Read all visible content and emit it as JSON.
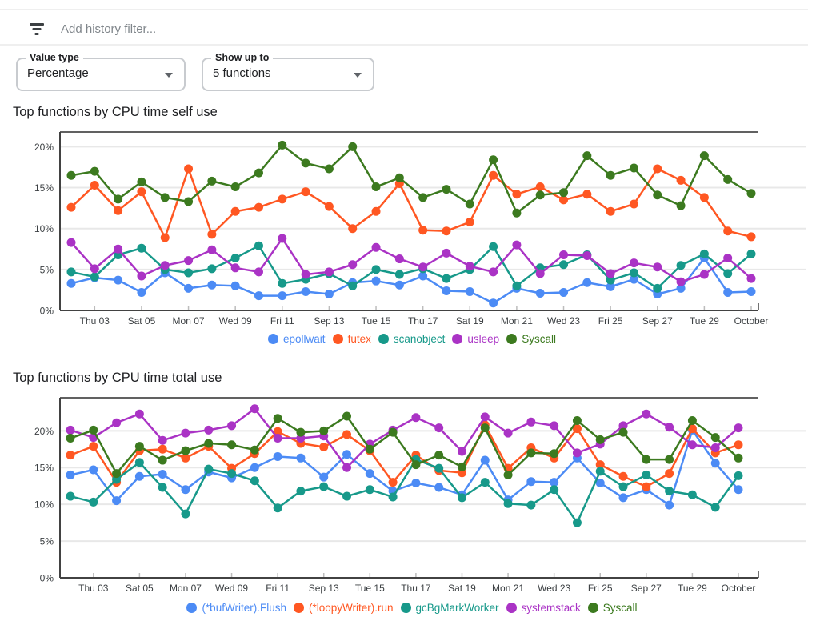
{
  "filter_bar": {
    "placeholder": "Add history filter..."
  },
  "controls": {
    "value_type": {
      "label": "Value type",
      "value": "Percentage"
    },
    "show_up_to": {
      "label": "Show up to",
      "value": "5 functions"
    }
  },
  "colors": {
    "blue": "#4C8BF5",
    "orange": "#FF5722",
    "teal": "#17998A",
    "purple": "#AA33C5",
    "green": "#3C7A1F",
    "axis": "#424242",
    "gridline": "#e8e8e8",
    "tick_label": "#3c4043"
  },
  "chart_data": [
    {
      "type": "line",
      "title": "Top functions by CPU time self use",
      "xlabel": "",
      "ylabel": "",
      "ylim": [
        0,
        21.8
      ],
      "grid": true,
      "legend_position": "bottom",
      "y_ticks": [
        0,
        5,
        10,
        15,
        20
      ],
      "y_tick_labels": [
        "0%",
        "5%",
        "10%",
        "15%",
        "20%"
      ],
      "x_tick_labels": [
        "Thu 03",
        "Sat 05",
        "Mon 07",
        "Wed 09",
        "Fri 11",
        "Sep 13",
        "Tue 15",
        "Thu 17",
        "Sat 19",
        "Mon 21",
        "Wed 23",
        "Fri 25",
        "Sep 27",
        "Tue 29",
        "October"
      ],
      "series": [
        {
          "name": "epollwait",
          "color": "#4C8BF5",
          "values": [
            3.3,
            4.0,
            3.7,
            2.2,
            4.6,
            2.7,
            3.1,
            3.0,
            1.8,
            1.8,
            2.3,
            2.0,
            3.4,
            3.6,
            3.1,
            4.2,
            2.4,
            2.3,
            0.9,
            2.7,
            2.1,
            2.2,
            3.4,
            2.9,
            3.8,
            2.0,
            2.7,
            6.4,
            2.2,
            2.3
          ]
        },
        {
          "name": "futex",
          "color": "#FF5722",
          "values": [
            12.6,
            15.3,
            12.2,
            14.5,
            8.9,
            17.3,
            9.3,
            12.1,
            12.6,
            13.6,
            14.5,
            12.7,
            10.0,
            12.1,
            15.5,
            9.8,
            9.7,
            10.8,
            16.5,
            14.2,
            15.1,
            13.5,
            14.2,
            12.1,
            13.0,
            17.3,
            15.9,
            13.8,
            9.7,
            9.0
          ]
        },
        {
          "name": "scanobject",
          "color": "#17998A",
          "values": [
            4.7,
            4.1,
            6.8,
            7.6,
            5.0,
            4.6,
            5.1,
            6.4,
            7.9,
            3.3,
            3.8,
            4.5,
            3.0,
            5.0,
            4.4,
            5.1,
            3.9,
            5.0,
            7.8,
            3.0,
            5.2,
            5.6,
            6.8,
            3.7,
            4.6,
            2.7,
            5.5,
            6.9,
            4.5,
            6.9
          ]
        },
        {
          "name": "usleep",
          "color": "#AA33C5",
          "values": [
            8.3,
            5.1,
            7.5,
            4.2,
            5.5,
            6.1,
            7.4,
            5.2,
            4.7,
            8.8,
            4.4,
            4.7,
            5.6,
            7.7,
            6.3,
            5.3,
            7.0,
            5.4,
            4.7,
            8.0,
            4.5,
            6.8,
            6.7,
            4.5,
            5.8,
            5.3,
            3.5,
            4.4,
            6.4,
            3.9
          ]
        },
        {
          "name": "Syscall",
          "color": "#3C7A1F",
          "values": [
            16.5,
            17.0,
            13.6,
            15.7,
            13.8,
            13.3,
            15.8,
            15.1,
            16.8,
            20.2,
            18.0,
            17.3,
            20.0,
            15.1,
            16.2,
            13.8,
            14.8,
            13.0,
            18.4,
            11.9,
            14.1,
            14.4,
            18.9,
            16.5,
            17.4,
            14.1,
            12.8,
            18.9,
            16.0,
            14.3
          ]
        }
      ]
    },
    {
      "type": "line",
      "title": "Top functions by CPU time total use",
      "xlabel": "",
      "ylabel": "",
      "ylim": [
        0,
        24.5
      ],
      "grid": true,
      "legend_position": "bottom",
      "y_ticks": [
        0,
        5,
        10,
        15,
        20
      ],
      "y_tick_labels": [
        "0%",
        "5%",
        "10%",
        "15%",
        "20%"
      ],
      "x_tick_labels": [
        "Thu 03",
        "Sat 05",
        "Mon 07",
        "Wed 09",
        "Fri 11",
        "Sep 13",
        "Tue 15",
        "Thu 17",
        "Sat 19",
        "Mon 21",
        "Wed 23",
        "Fri 25",
        "Sep 27",
        "Tue 29",
        "October"
      ],
      "series": [
        {
          "name": "(*bufWriter).Flush",
          "color": "#4C8BF5",
          "values": [
            14.0,
            14.7,
            10.5,
            13.8,
            14.1,
            12.0,
            14.4,
            13.6,
            15.0,
            16.5,
            16.3,
            13.7,
            16.8,
            14.2,
            11.8,
            12.9,
            12.3,
            11.3,
            16.0,
            10.6,
            13.1,
            13.0,
            16.3,
            12.9,
            10.9,
            12.0,
            9.9,
            20.1,
            15.6,
            12.0
          ]
        },
        {
          "name": "(*loopyWriter).run",
          "color": "#FF5722",
          "values": [
            16.7,
            17.9,
            13.0,
            17.3,
            17.5,
            16.3,
            17.9,
            14.9,
            16.9,
            19.9,
            18.3,
            17.8,
            19.5,
            17.3,
            13.0,
            16.7,
            14.6,
            14.3,
            20.8,
            14.9,
            17.7,
            16.3,
            20.3,
            15.4,
            13.8,
            12.4,
            14.2,
            20.3,
            17.0,
            18.1
          ]
        },
        {
          "name": "gcBgMarkWorker",
          "color": "#17998A",
          "values": [
            11.1,
            10.3,
            13.4,
            15.7,
            12.3,
            8.7,
            14.8,
            14.2,
            13.2,
            9.5,
            11.8,
            12.4,
            11.1,
            12.0,
            11.0,
            16.1,
            14.9,
            10.9,
            13.0,
            10.1,
            9.9,
            12.0,
            7.5,
            14.5,
            12.4,
            14.0,
            11.8,
            11.3,
            9.6,
            13.9
          ]
        },
        {
          "name": "systemstack",
          "color": "#AA33C5",
          "values": [
            20.1,
            19.1,
            21.1,
            22.3,
            18.7,
            19.7,
            20.1,
            20.7,
            23.0,
            19.0,
            19.0,
            19.3,
            15.0,
            18.2,
            20.1,
            21.8,
            20.4,
            17.2,
            21.9,
            19.7,
            21.2,
            20.7,
            17.0,
            18.2,
            20.7,
            22.3,
            20.5,
            18.1,
            17.7,
            20.4
          ]
        },
        {
          "name": "Syscall",
          "color": "#3C7A1F",
          "values": [
            19.0,
            20.1,
            14.2,
            17.9,
            16.0,
            17.3,
            18.3,
            18.1,
            17.4,
            21.7,
            19.8,
            20.0,
            22.0,
            17.5,
            19.8,
            15.4,
            16.7,
            15.1,
            20.4,
            14.0,
            17.0,
            16.9,
            21.4,
            18.8,
            19.8,
            16.1,
            16.1,
            21.4,
            19.1,
            16.3
          ]
        }
      ]
    }
  ]
}
